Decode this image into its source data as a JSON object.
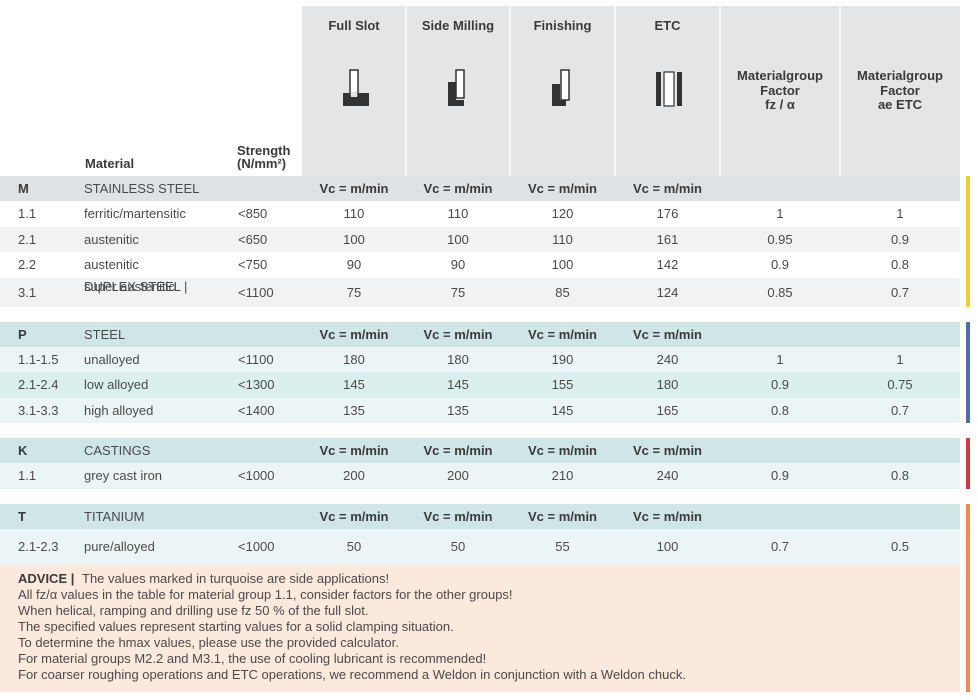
{
  "header": {
    "material": "Material",
    "strength": [
      "Strength",
      "(N/mm²)"
    ],
    "columns": [
      [
        "Full Slot"
      ],
      [
        "Side Milling"
      ],
      [
        "Finishing"
      ],
      [
        "ETC"
      ],
      [
        "Materialgroup",
        "Factor",
        "fz / α"
      ],
      [
        "Materialgroup",
        "Factor",
        "ae ETC"
      ]
    ]
  },
  "groups": [
    {
      "code": "M",
      "name": "STAINLESS STEEL",
      "color": "#f2cf2a",
      "units": [
        "Vc = m/min",
        "Vc = m/min",
        "Vc = m/min",
        "Vc = m/min"
      ],
      "rows": [
        [
          "1.1",
          [
            "ferritic/martensitic"
          ],
          "<850",
          110,
          110,
          120,
          176,
          1,
          1
        ],
        [
          "2.1",
          [
            "austenitic"
          ],
          "<650",
          100,
          100,
          110,
          161,
          0.95,
          0.9
        ],
        [
          "2.2",
          [
            "austenitic"
          ],
          "<750",
          90,
          90,
          100,
          142,
          0.9,
          0.8
        ],
        [
          "3.1",
          [
            "DUPLEX STEEL |",
            "super austenitic"
          ],
          "<1100",
          75,
          75,
          85,
          124,
          0.85,
          0.7
        ]
      ]
    },
    {
      "code": "P",
      "name": "STEEL",
      "color": "#4f6fa8",
      "units": [
        "Vc = m/min",
        "Vc = m/min",
        "Vc = m/min",
        "Vc = m/min"
      ],
      "rows": [
        [
          "1.1-1.5",
          [
            "unalloyed"
          ],
          "<1100",
          180,
          180,
          190,
          240,
          1,
          1
        ],
        [
          "2.1-2.4",
          [
            "low alloyed"
          ],
          "<1300",
          145,
          145,
          155,
          180,
          0.9,
          0.75
        ],
        [
          "3.1-3.3",
          [
            "high alloyed"
          ],
          "<1400",
          135,
          135,
          145,
          165,
          0.8,
          0.7
        ]
      ]
    },
    {
      "code": "K",
      "name": "CASTINGS",
      "color": "#d2383f",
      "units": [
        "Vc = m/min",
        "Vc = m/min",
        "Vc = m/min",
        "Vc = m/min"
      ],
      "rows": [
        [
          "1.1",
          [
            "grey cast iron"
          ],
          "<1000",
          200,
          200,
          210,
          240,
          0.9,
          0.8
        ]
      ]
    },
    {
      "code": "T",
      "name": "TITANIUM",
      "color": "#ee8a52",
      "units": [
        "Vc = m/min",
        "Vc = m/min",
        "Vc = m/min",
        "Vc = m/min"
      ],
      "rows": [
        [
          "2.1-2.3",
          [
            "pure/alloyed"
          ],
          "<1000",
          50,
          50,
          55,
          100,
          0.7,
          0.5
        ]
      ]
    }
  ],
  "advice": {
    "label": "ADVICE |",
    "lines": [
      "The values marked in turquoise are side applications!",
      "All fz/α values in the table for material group 1.1, consider factors for the other groups!",
      "When helical, ramping and drilling use fz 50 % of the full slot.",
      "The specified values represent starting values for a solid clamping situation.",
      "To determine the hmax values, please use the provided calculator.",
      "For material groups M2.2 and M3.1, the use of cooling lubricant is recommended!",
      "For coarser roughing operations and ETC operations, we recommend a Weldon in conjunction with a Weldon chuck."
    ]
  }
}
